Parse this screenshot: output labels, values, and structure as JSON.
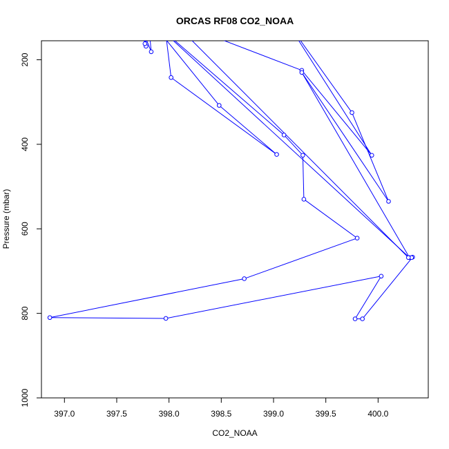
{
  "chart_data": {
    "type": "line",
    "title": "ORCAS RF08 CO2_NOAA",
    "xlabel": "CO2_NOAA",
    "ylabel": "Pressure (mbar)",
    "xlim": [
      396.78,
      400.48
    ],
    "ylim": [
      1000,
      155
    ],
    "y_reversed": true,
    "grid": false,
    "line_color": "#0000ff",
    "marker": "open-circle",
    "xticks": [
      {
        "value": 397.0,
        "label": "397.0"
      },
      {
        "value": 397.5,
        "label": "397.5"
      },
      {
        "value": 398.0,
        "label": "398.0"
      },
      {
        "value": 398.5,
        "label": "398.5"
      },
      {
        "value": 399.0,
        "label": "399.0"
      },
      {
        "value": 399.5,
        "label": "399.5"
      },
      {
        "value": 400.0,
        "label": "400.0"
      }
    ],
    "yticks": [
      {
        "value": 200,
        "label": "200"
      },
      {
        "value": 400,
        "label": "400"
      },
      {
        "value": 600,
        "label": "600"
      },
      {
        "value": 800,
        "label": "800"
      },
      {
        "value": 1000,
        "label": "1000"
      }
    ],
    "series": [
      {
        "points": [
          {
            "x": 397.79,
            "y": 100,
            "marker": false
          },
          {
            "x": 397.78,
            "y": 168
          },
          {
            "x": 397.76,
            "y": 100,
            "marker": false
          },
          {
            "x": 397.77,
            "y": 162
          },
          {
            "x": 397.7,
            "y": 100,
            "marker": false
          },
          {
            "x": 397.83,
            "y": 181
          },
          {
            "x": 397.8,
            "y": 100,
            "marker": false
          },
          {
            "x": 398.48,
            "y": 308
          },
          {
            "x": 399.03,
            "y": 424
          },
          {
            "x": 398.02,
            "y": 242
          },
          {
            "x": 397.95,
            "y": 100,
            "marker": false
          },
          {
            "x": 399.27,
            "y": 225
          },
          {
            "x": 399.94,
            "y": 426
          },
          {
            "x": 399.1,
            "y": 100,
            "marker": false
          },
          {
            "x": 399.75,
            "y": 325
          },
          {
            "x": 400.1,
            "y": 535
          },
          {
            "x": 399.27,
            "y": 230
          },
          {
            "x": 400.3,
            "y": 668
          },
          {
            "x": 397.8,
            "y": 100,
            "marker": false
          },
          {
            "x": 399.1,
            "y": 378
          },
          {
            "x": 399.28,
            "y": 426
          },
          {
            "x": 399.29,
            "y": 530
          },
          {
            "x": 399.8,
            "y": 622
          },
          {
            "x": 398.72,
            "y": 718
          },
          {
            "x": 396.86,
            "y": 810
          },
          {
            "x": 397.97,
            "y": 812
          },
          {
            "x": 400.03,
            "y": 712
          },
          {
            "x": 399.78,
            "y": 813
          },
          {
            "x": 399.85,
            "y": 813
          },
          {
            "x": 400.33,
            "y": 667
          },
          {
            "x": 400.32,
            "y": 668
          },
          {
            "x": 400.29,
            "y": 668
          },
          {
            "x": 398.0,
            "y": 100,
            "marker": false
          }
        ]
      }
    ]
  }
}
